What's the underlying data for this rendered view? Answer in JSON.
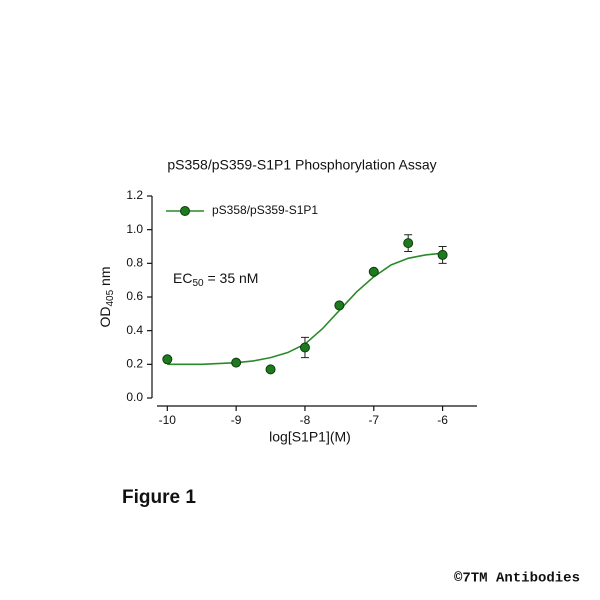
{
  "chart_data": {
    "type": "scatter",
    "title": "pS358/pS359-S1P1 Phosphorylation Assay",
    "xlabel": "log[S1P1](M)",
    "ylabel": [
      "OD",
      "405",
      " nm"
    ],
    "annotation": [
      "EC",
      "50",
      " = 35 nM"
    ],
    "series": [
      {
        "name": "pS358/pS359-S1P1",
        "color": "#1f7a1f",
        "x": [
          -10,
          -9,
          -8.5,
          -8,
          -7.5,
          -7,
          -6.5,
          -6
        ],
        "values": [
          0.23,
          0.21,
          0.17,
          0.3,
          0.55,
          0.75,
          0.92,
          0.85
        ],
        "errors": [
          null,
          null,
          null,
          0.06,
          null,
          null,
          0.05,
          0.05
        ]
      }
    ],
    "fit": {
      "color": "#2a8a2a",
      "x": [
        -10,
        -9.5,
        -9,
        -8.75,
        -8.5,
        -8.25,
        -8,
        -7.75,
        -7.5,
        -7.25,
        -7,
        -6.75,
        -6.5,
        -6.25,
        -6
      ],
      "values": [
        0.2,
        0.2,
        0.21,
        0.22,
        0.24,
        0.27,
        0.32,
        0.41,
        0.52,
        0.63,
        0.72,
        0.79,
        0.83,
        0.85,
        0.86
      ]
    },
    "xlim": [
      -10.15,
      -5.5
    ],
    "ylim": [
      0,
      1.2
    ],
    "xticks": [
      -10,
      -9,
      -8,
      -7,
      -6
    ],
    "yticks": [
      {
        "value": 0,
        "label": "0.0"
      },
      0.2,
      0.4,
      0.6,
      0.8,
      {
        "value": 1,
        "label": "1.0"
      },
      1.2
    ],
    "legend": "upper left"
  },
  "figure_label": "Figure 1",
  "copyright": "©7TM Antibodies"
}
